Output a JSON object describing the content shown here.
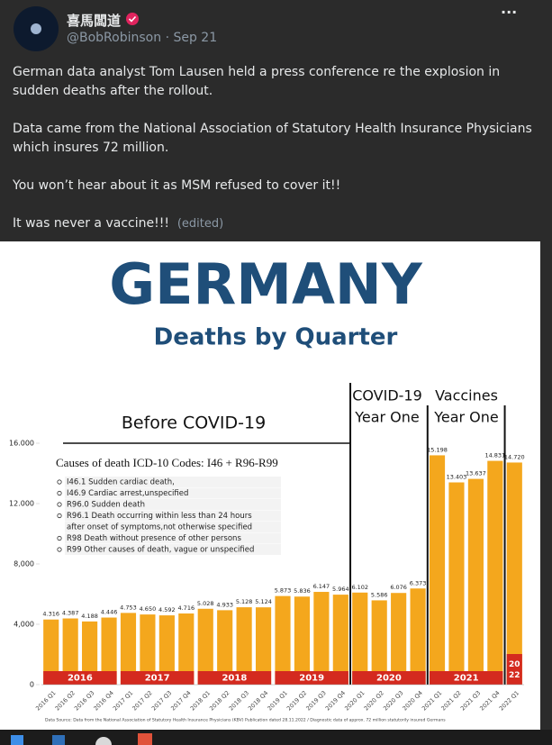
{
  "post": {
    "author": "喜馬闆道",
    "handle": "@BobRobinson",
    "separator": "·",
    "date": "Sep 21",
    "menu": "···",
    "paragraphs": [
      "German data analyst Tom Lausen held a press conference re the explosion in sudden deaths after the rollout.",
      "Data came from the National Association of Statutory Health Insurance Physicians which insures 72 million.",
      "You won’t hear about it as MSM refused to cover it!!",
      "It was never a vaccine!!!"
    ],
    "edited": "(edited)"
  },
  "chart_data": {
    "type": "bar",
    "title": "GERMANY",
    "subtitle": "Deaths by Quarter",
    "categories": [
      "2016 Q1",
      "2016 Q2",
      "2016 Q3",
      "2016 Q4",
      "2017 Q1",
      "2017 Q2",
      "2017 Q3",
      "2017 Q4",
      "2018 Q1",
      "2018 Q2",
      "2018 Q3",
      "2018 Q4",
      "2019 Q1",
      "2019 Q2",
      "2019 Q3",
      "2019 Q4",
      "2020 Q1",
      "2020 Q2",
      "2020 Q3",
      "2020 Q4",
      "2021 Q1",
      "2021 Q2",
      "2021 Q3",
      "2021 Q4",
      "2022 Q1"
    ],
    "values": [
      4316,
      4387,
      4188,
      4446,
      4753,
      4650,
      4592,
      4716,
      5028,
      4933,
      5128,
      5124,
      5873,
      5836,
      6147,
      5964,
      6102,
      5586,
      6076,
      6373,
      15198,
      13403,
      13637,
      14831,
      14720
    ],
    "value_labels": [
      "4.316",
      "4.387",
      "4.188",
      "4.446",
      "4.753",
      "4.650",
      "4.592",
      "4.716",
      "5.028",
      "4.933",
      "5.128",
      "5.124",
      "5.873",
      "5.836",
      "6.147",
      "5.964",
      "6.102",
      "5.586",
      "6.076",
      "6.373",
      "15.198",
      "13.403",
      "13.637",
      "14.831",
      "14.720"
    ],
    "color": "#f4a71d",
    "ylim": [
      0,
      16000
    ],
    "yticks": [
      0,
      {
        "value": 4000,
        "label": "4,000"
      },
      {
        "value": 8000,
        "label": "8,000"
      },
      {
        "value": 12000,
        "label": "12.000"
      },
      {
        "value": 16000,
        "label": "16.000"
      }
    ],
    "groups": [
      "2016",
      "2017",
      "2018",
      "2019",
      "2020",
      "2021",
      "20 22"
    ],
    "group_color": "#d42a1f",
    "annotations": [
      "Before COVID-19",
      "COVID-19",
      "Year One",
      "Vaccines",
      "Year One"
    ],
    "legend_title": "Causes of death ICD-10 Codes: I46 + R96-R99",
    "legend_items": [
      [
        "I46.1 Sudden cardiac death,"
      ],
      [
        "I46.9 Cardiac arrest,unspecified"
      ],
      [
        "R96.0 Sudden death"
      ],
      [
        "R96.1 Death occurring within less than 24 hours",
        "after onset of symptoms,not otherwise specified"
      ],
      [
        "R98 Death without presence of other persons"
      ],
      [
        "R99 Other causes of death, vague or unspecified"
      ]
    ],
    "source": "Data Source: Data from the National Association of Statutory Health Insurance Physicians (KBV) Publication dated 28.11.2022 / Diagnostic data of approx. 72 million statutorily insured Germans"
  }
}
